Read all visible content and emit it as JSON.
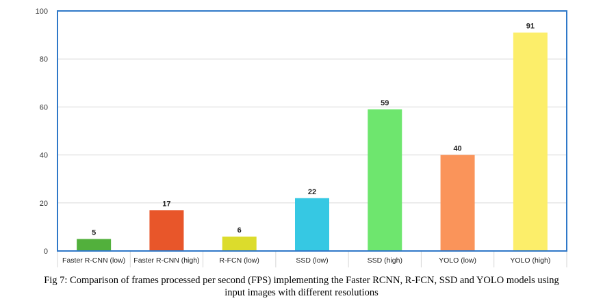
{
  "chart_data": {
    "type": "bar",
    "title": "",
    "xlabel": "",
    "ylabel": "",
    "ylim": [
      0,
      100
    ],
    "yticks": [
      0,
      20,
      40,
      60,
      80,
      100
    ],
    "grid": true,
    "categories": [
      "Faster R-CNN (low)",
      "Faster R-CNN (high)",
      "R-FCN (low)",
      "SSD (low)",
      "SSD (high)",
      "YOLO (low)",
      "YOLO (high)"
    ],
    "values": [
      5,
      17,
      6,
      22,
      59,
      40,
      91
    ],
    "colors": [
      "#52b03c",
      "#e8562a",
      "#dcdc2c",
      "#36c8e3",
      "#6ee66e",
      "#fa945a",
      "#fcee6a"
    ],
    "frame_color": "#2f78c8"
  },
  "caption": {
    "line1": "Fig 7: Comparison of frames processed per second (FPS) implementing the Faster RCNN, R-FCN, SSD and YOLO models using",
    "line2": "input images with different resolutions"
  }
}
